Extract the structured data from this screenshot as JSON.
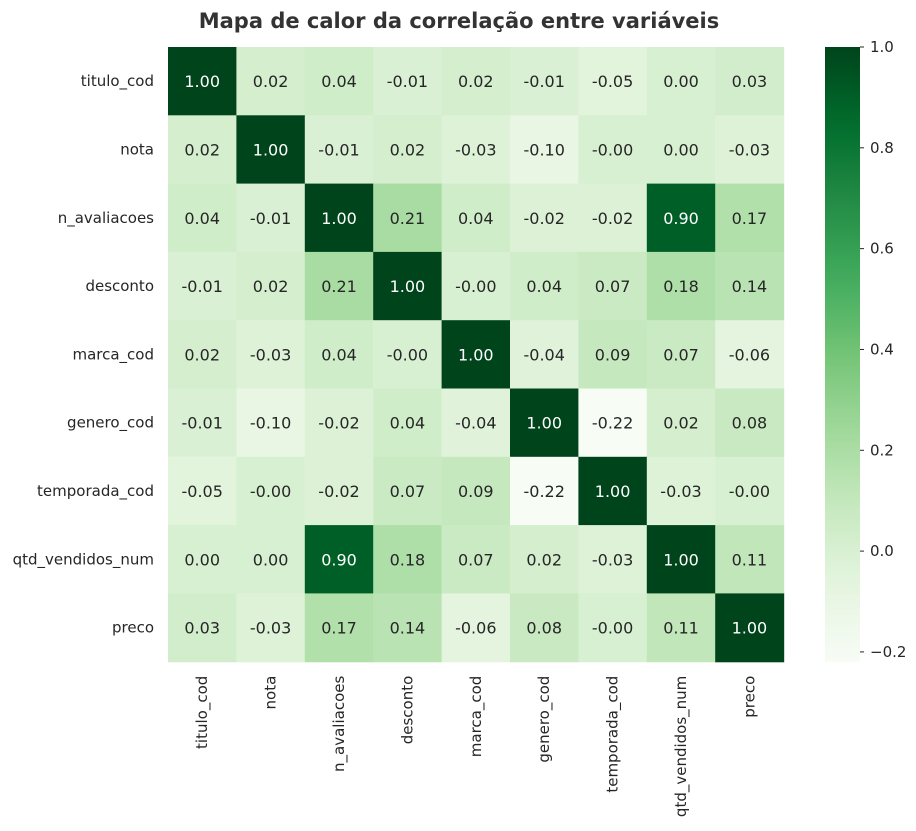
{
  "chart_data": {
    "type": "heatmap",
    "title": "Mapa de calor da correlação entre variáveis",
    "variables": [
      "titulo_cod",
      "nota",
      "n_avaliacoes",
      "desconto",
      "marca_cod",
      "genero_cod",
      "temporada_cod",
      "qtd_vendidos_num",
      "preco"
    ],
    "values": [
      [
        1.0,
        0.02,
        0.04,
        -0.01,
        0.02,
        -0.01,
        -0.05,
        0.0,
        0.03
      ],
      [
        0.02,
        1.0,
        -0.01,
        0.02,
        -0.03,
        -0.1,
        -0.0,
        0.0,
        -0.03
      ],
      [
        0.04,
        -0.01,
        1.0,
        0.21,
        0.04,
        -0.02,
        -0.02,
        0.9,
        0.17
      ],
      [
        -0.01,
        0.02,
        0.21,
        1.0,
        -0.0,
        0.04,
        0.07,
        0.18,
        0.14
      ],
      [
        0.02,
        -0.03,
        0.04,
        -0.0,
        1.0,
        -0.04,
        0.09,
        0.07,
        -0.06
      ],
      [
        -0.01,
        -0.1,
        -0.02,
        0.04,
        -0.04,
        1.0,
        -0.22,
        0.02,
        0.08
      ],
      [
        -0.05,
        -0.0,
        -0.02,
        0.07,
        0.09,
        -0.22,
        1.0,
        -0.03,
        -0.0
      ],
      [
        0.0,
        0.0,
        0.9,
        0.18,
        0.07,
        0.02,
        -0.03,
        1.0,
        0.11
      ],
      [
        0.03,
        -0.03,
        0.17,
        0.14,
        -0.06,
        0.08,
        -0.0,
        0.11,
        1.0
      ]
    ],
    "labels": [
      [
        "1.00",
        "0.02",
        "0.04",
        "-0.01",
        "0.02",
        "-0.01",
        "-0.05",
        "0.00",
        "0.03"
      ],
      [
        "0.02",
        "1.00",
        "-0.01",
        "0.02",
        "-0.03",
        "-0.10",
        "-0.00",
        "0.00",
        "-0.03"
      ],
      [
        "0.04",
        "-0.01",
        "1.00",
        "0.21",
        "0.04",
        "-0.02",
        "-0.02",
        "0.90",
        "0.17"
      ],
      [
        "-0.01",
        "0.02",
        "0.21",
        "1.00",
        "-0.00",
        "0.04",
        "0.07",
        "0.18",
        "0.14"
      ],
      [
        "0.02",
        "-0.03",
        "0.04",
        "-0.00",
        "1.00",
        "-0.04",
        "0.09",
        "0.07",
        "-0.06"
      ],
      [
        "-0.01",
        "-0.10",
        "-0.02",
        "0.04",
        "-0.04",
        "1.00",
        "-0.22",
        "0.02",
        "0.08"
      ],
      [
        "-0.05",
        "-0.00",
        "-0.02",
        "0.07",
        "0.09",
        "-0.22",
        "1.00",
        "-0.03",
        "-0.00"
      ],
      [
        "0.00",
        "0.00",
        "0.90",
        "0.18",
        "0.07",
        "0.02",
        "-0.03",
        "1.00",
        "0.11"
      ],
      [
        "0.03",
        "-0.03",
        "0.17",
        "0.14",
        "-0.06",
        "0.08",
        "-0.00",
        "0.11",
        "1.00"
      ]
    ],
    "colormap": "Greens",
    "vmin": -0.22,
    "vmax": 1.0,
    "colorbar_ticks": [
      -0.2,
      0.0,
      0.2,
      0.4,
      0.6,
      0.8,
      1.0
    ],
    "colorbar_tick_labels": [
      "−0.2",
      "0.0",
      "0.2",
      "0.4",
      "0.6",
      "0.8",
      "1.0"
    ],
    "legend_position": "right",
    "grid": false
  }
}
